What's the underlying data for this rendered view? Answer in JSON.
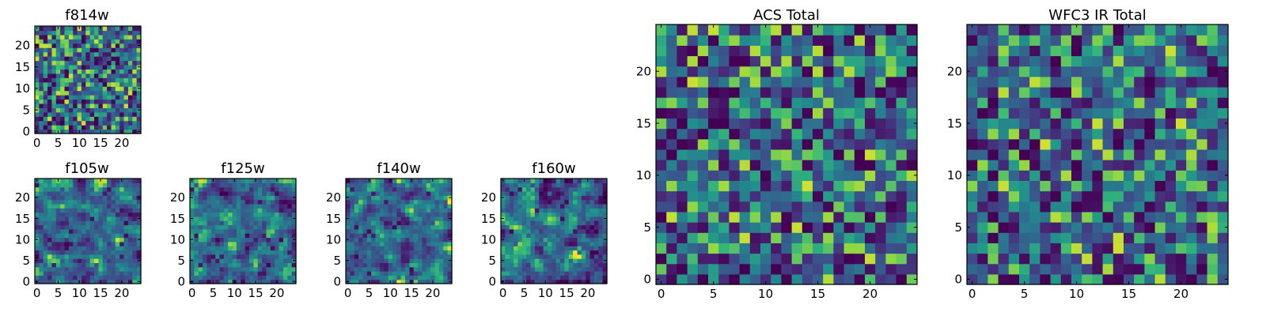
{
  "chart_data": [
    {
      "type": "heatmap",
      "title": "f814w",
      "nx": 25,
      "ny": 25,
      "seed": 11,
      "xlim": [
        -0.5,
        24.5
      ],
      "ylim": [
        -0.5,
        24.5
      ],
      "xticks": [
        0,
        5,
        10,
        15,
        20
      ],
      "yticks": [
        0,
        5,
        10,
        15,
        20
      ],
      "colormap": "viridis",
      "smoothing": 0
    },
    {
      "type": "heatmap",
      "title": "f105w",
      "nx": 25,
      "ny": 25,
      "seed": 23,
      "xlim": [
        -0.5,
        24.5
      ],
      "ylim": [
        -0.5,
        24.5
      ],
      "xticks": [
        0,
        5,
        10,
        15,
        20
      ],
      "yticks": [
        0,
        5,
        10,
        15,
        20
      ],
      "colormap": "viridis",
      "smoothing": 1
    },
    {
      "type": "heatmap",
      "title": "f125w",
      "nx": 25,
      "ny": 25,
      "seed": 37,
      "xlim": [
        -0.5,
        24.5
      ],
      "ylim": [
        -0.5,
        24.5
      ],
      "xticks": [
        0,
        5,
        10,
        15,
        20
      ],
      "yticks": [
        0,
        5,
        10,
        15,
        20
      ],
      "colormap": "viridis",
      "smoothing": 1
    },
    {
      "type": "heatmap",
      "title": "f140w",
      "nx": 25,
      "ny": 25,
      "seed": 41,
      "xlim": [
        -0.5,
        24.5
      ],
      "ylim": [
        -0.5,
        24.5
      ],
      "xticks": [
        0,
        5,
        10,
        15,
        20
      ],
      "yticks": [
        0,
        5,
        10,
        15,
        20
      ],
      "colormap": "viridis",
      "smoothing": 1
    },
    {
      "type": "heatmap",
      "title": "f160w",
      "nx": 25,
      "ny": 25,
      "seed": 53,
      "xlim": [
        -0.5,
        24.5
      ],
      "ylim": [
        -0.5,
        24.5
      ],
      "xticks": [
        0,
        5,
        10,
        15,
        20
      ],
      "yticks": [
        0,
        5,
        10,
        15,
        20
      ],
      "colormap": "viridis",
      "smoothing": 1
    },
    {
      "type": "heatmap",
      "title": "ACS Total",
      "nx": 25,
      "ny": 25,
      "seed": 67,
      "xlim": [
        -0.5,
        24.5
      ],
      "ylim": [
        -0.5,
        24.5
      ],
      "xticks": [
        0,
        5,
        10,
        15,
        20
      ],
      "yticks": [
        0,
        5,
        10,
        15,
        20
      ],
      "colormap": "viridis",
      "smoothing": 0
    },
    {
      "type": "heatmap",
      "title": "WFC3 IR Total",
      "nx": 25,
      "ny": 25,
      "seed": 79,
      "xlim": [
        -0.5,
        24.5
      ],
      "ylim": [
        -0.5,
        24.5
      ],
      "xticks": [
        0,
        5,
        10,
        15,
        20
      ],
      "yticks": [
        0,
        5,
        10,
        15,
        20
      ],
      "colormap": "viridis",
      "smoothing": 0
    }
  ]
}
